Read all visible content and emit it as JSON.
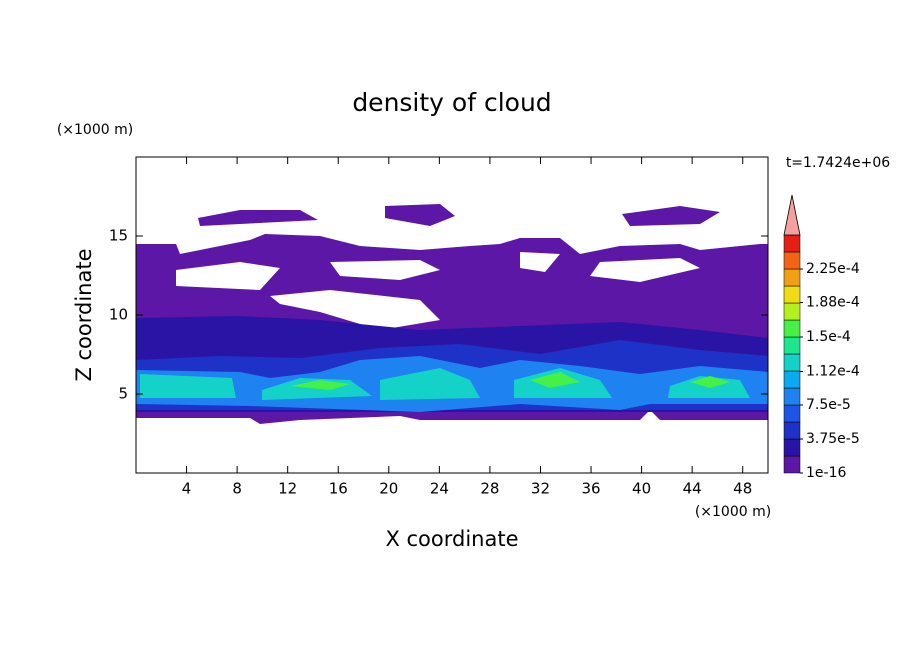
{
  "chart_data": {
    "type": "contour",
    "title": "density of cloud",
    "x_label": "X coordinate",
    "y_label": "Z coordinate",
    "x_unit": "(×1000 m)",
    "y_unit": "(×1000 m)",
    "time_label": "t=1.7424e+06",
    "xlim": [
      0,
      50
    ],
    "ylim": [
      0,
      20
    ],
    "xticks": [
      4,
      8,
      12,
      16,
      20,
      24,
      28,
      32,
      36,
      40,
      44,
      48
    ],
    "yticks": [
      5,
      10,
      15
    ],
    "colorbar": {
      "ticks": [
        {
          "value": 1e-16,
          "label": "1e-16"
        },
        {
          "value": 3.75e-05,
          "label": "3.75e-5"
        },
        {
          "value": 7.5e-05,
          "label": "7.5e-5"
        },
        {
          "value": 0.000112,
          "label": "1.12e-4"
        },
        {
          "value": 0.00015,
          "label": "1.5e-4"
        },
        {
          "value": 0.000188,
          "label": "1.88e-4"
        },
        {
          "value": 0.000225,
          "label": "2.25e-4"
        }
      ],
      "colors": [
        "#5c17a6",
        "#2a14a6",
        "#1e32c8",
        "#1e55e6",
        "#1e82f0",
        "#0aaaf0",
        "#14d2c8",
        "#1ee68c",
        "#46f046",
        "#b4f01e",
        "#f0dc14",
        "#f0a014",
        "#f06414",
        "#e61e14"
      ],
      "over_color": "#f4a0a0"
    }
  }
}
